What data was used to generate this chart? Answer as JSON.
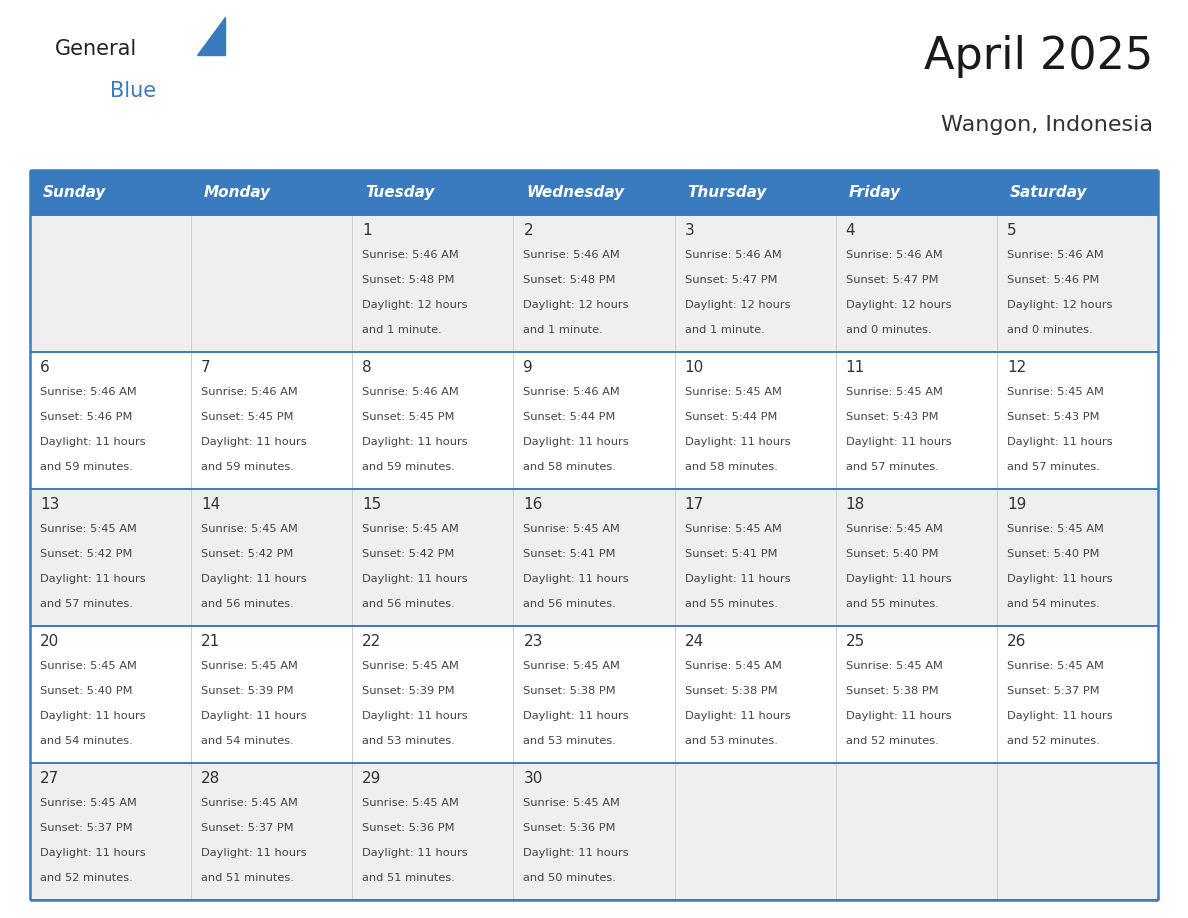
{
  "title": "April 2025",
  "subtitle": "Wangon, Indonesia",
  "days_of_week": [
    "Sunday",
    "Monday",
    "Tuesday",
    "Wednesday",
    "Thursday",
    "Friday",
    "Saturday"
  ],
  "header_bg": "#3a7abf",
  "header_text": "#ffffff",
  "row_bg_light": "#efefef",
  "row_bg_white": "#ffffff",
  "day_number_color": "#333333",
  "cell_text_color": "#444444",
  "grid_line_color": "#3a7abf",
  "title_color": "#1a1a1a",
  "subtitle_color": "#333333",
  "logo_general_color": "#222222",
  "logo_blue_color": "#3a7abf",
  "logo_triangle_color": "#3a7abf",
  "calendar": [
    [
      {
        "day": null,
        "sunrise": null,
        "sunset": null,
        "daylight": null
      },
      {
        "day": null,
        "sunrise": null,
        "sunset": null,
        "daylight": null
      },
      {
        "day": 1,
        "sunrise": "5:46 AM",
        "sunset": "5:48 PM",
        "daylight": "12 hours\nand 1 minute."
      },
      {
        "day": 2,
        "sunrise": "5:46 AM",
        "sunset": "5:48 PM",
        "daylight": "12 hours\nand 1 minute."
      },
      {
        "day": 3,
        "sunrise": "5:46 AM",
        "sunset": "5:47 PM",
        "daylight": "12 hours\nand 1 minute."
      },
      {
        "day": 4,
        "sunrise": "5:46 AM",
        "sunset": "5:47 PM",
        "daylight": "12 hours\nand 0 minutes."
      },
      {
        "day": 5,
        "sunrise": "5:46 AM",
        "sunset": "5:46 PM",
        "daylight": "12 hours\nand 0 minutes."
      }
    ],
    [
      {
        "day": 6,
        "sunrise": "5:46 AM",
        "sunset": "5:46 PM",
        "daylight": "11 hours\nand 59 minutes."
      },
      {
        "day": 7,
        "sunrise": "5:46 AM",
        "sunset": "5:45 PM",
        "daylight": "11 hours\nand 59 minutes."
      },
      {
        "day": 8,
        "sunrise": "5:46 AM",
        "sunset": "5:45 PM",
        "daylight": "11 hours\nand 59 minutes."
      },
      {
        "day": 9,
        "sunrise": "5:46 AM",
        "sunset": "5:44 PM",
        "daylight": "11 hours\nand 58 minutes."
      },
      {
        "day": 10,
        "sunrise": "5:45 AM",
        "sunset": "5:44 PM",
        "daylight": "11 hours\nand 58 minutes."
      },
      {
        "day": 11,
        "sunrise": "5:45 AM",
        "sunset": "5:43 PM",
        "daylight": "11 hours\nand 57 minutes."
      },
      {
        "day": 12,
        "sunrise": "5:45 AM",
        "sunset": "5:43 PM",
        "daylight": "11 hours\nand 57 minutes."
      }
    ],
    [
      {
        "day": 13,
        "sunrise": "5:45 AM",
        "sunset": "5:42 PM",
        "daylight": "11 hours\nand 57 minutes."
      },
      {
        "day": 14,
        "sunrise": "5:45 AM",
        "sunset": "5:42 PM",
        "daylight": "11 hours\nand 56 minutes."
      },
      {
        "day": 15,
        "sunrise": "5:45 AM",
        "sunset": "5:42 PM",
        "daylight": "11 hours\nand 56 minutes."
      },
      {
        "day": 16,
        "sunrise": "5:45 AM",
        "sunset": "5:41 PM",
        "daylight": "11 hours\nand 56 minutes."
      },
      {
        "day": 17,
        "sunrise": "5:45 AM",
        "sunset": "5:41 PM",
        "daylight": "11 hours\nand 55 minutes."
      },
      {
        "day": 18,
        "sunrise": "5:45 AM",
        "sunset": "5:40 PM",
        "daylight": "11 hours\nand 55 minutes."
      },
      {
        "day": 19,
        "sunrise": "5:45 AM",
        "sunset": "5:40 PM",
        "daylight": "11 hours\nand 54 minutes."
      }
    ],
    [
      {
        "day": 20,
        "sunrise": "5:45 AM",
        "sunset": "5:40 PM",
        "daylight": "11 hours\nand 54 minutes."
      },
      {
        "day": 21,
        "sunrise": "5:45 AM",
        "sunset": "5:39 PM",
        "daylight": "11 hours\nand 54 minutes."
      },
      {
        "day": 22,
        "sunrise": "5:45 AM",
        "sunset": "5:39 PM",
        "daylight": "11 hours\nand 53 minutes."
      },
      {
        "day": 23,
        "sunrise": "5:45 AM",
        "sunset": "5:38 PM",
        "daylight": "11 hours\nand 53 minutes."
      },
      {
        "day": 24,
        "sunrise": "5:45 AM",
        "sunset": "5:38 PM",
        "daylight": "11 hours\nand 53 minutes."
      },
      {
        "day": 25,
        "sunrise": "5:45 AM",
        "sunset": "5:38 PM",
        "daylight": "11 hours\nand 52 minutes."
      },
      {
        "day": 26,
        "sunrise": "5:45 AM",
        "sunset": "5:37 PM",
        "daylight": "11 hours\nand 52 minutes."
      }
    ],
    [
      {
        "day": 27,
        "sunrise": "5:45 AM",
        "sunset": "5:37 PM",
        "daylight": "11 hours\nand 52 minutes."
      },
      {
        "day": 28,
        "sunrise": "5:45 AM",
        "sunset": "5:37 PM",
        "daylight": "11 hours\nand 51 minutes."
      },
      {
        "day": 29,
        "sunrise": "5:45 AM",
        "sunset": "5:36 PM",
        "daylight": "11 hours\nand 51 minutes."
      },
      {
        "day": 30,
        "sunrise": "5:45 AM",
        "sunset": "5:36 PM",
        "daylight": "11 hours\nand 50 minutes."
      },
      {
        "day": null,
        "sunrise": null,
        "sunset": null,
        "daylight": null
      },
      {
        "day": null,
        "sunrise": null,
        "sunset": null,
        "daylight": null
      },
      {
        "day": null,
        "sunrise": null,
        "sunset": null,
        "daylight": null
      }
    ]
  ]
}
